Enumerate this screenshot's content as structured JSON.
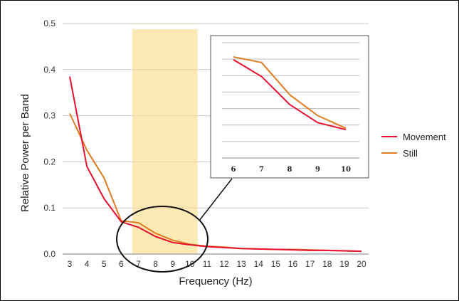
{
  "chart_data": {
    "type": "line",
    "xlabel": "Frequency (Hz)",
    "ylabel": "Relative Power per Band",
    "x": [
      3,
      4,
      5,
      6,
      7,
      8,
      9,
      10,
      11,
      12,
      13,
      14,
      15,
      16,
      17,
      18,
      19,
      20
    ],
    "ylim": [
      0,
      0.5
    ],
    "yticks": [
      "0.0",
      "0.1",
      "0.2",
      "0.3",
      "0.4",
      "0.5"
    ],
    "grid": true,
    "legend_position": "right",
    "highlight_band": [
      7,
      10
    ],
    "series": [
      {
        "name": "Movement",
        "color": "#e8112d",
        "values": [
          0.385,
          0.19,
          0.12,
          0.07,
          0.058,
          0.038,
          0.025,
          0.02,
          0.016,
          0.014,
          0.012,
          0.011,
          0.01,
          0.009,
          0.008,
          0.008,
          0.007,
          0.006
        ]
      },
      {
        "name": "Still",
        "color": "#e07b20",
        "values": [
          0.305,
          0.225,
          0.165,
          0.072,
          0.068,
          0.045,
          0.03,
          0.021,
          0.017,
          0.015,
          0.012,
          0.011,
          0.01,
          0.01,
          0.009,
          0.008,
          0.007,
          0.006
        ]
      }
    ],
    "inset": {
      "x": [
        6,
        7,
        8,
        9,
        10
      ],
      "xticks": [
        "6",
        "7",
        "8",
        "9",
        "10"
      ],
      "series": [
        {
          "name": "Movement",
          "values": [
            0.07,
            0.058,
            0.038,
            0.025,
            0.02
          ]
        },
        {
          "name": "Still",
          "values": [
            0.072,
            0.068,
            0.045,
            0.03,
            0.021
          ]
        }
      ]
    }
  },
  "colors": {
    "highlight": "#fce9b4",
    "grid": "#c8c8c8",
    "axis": "#999999"
  }
}
